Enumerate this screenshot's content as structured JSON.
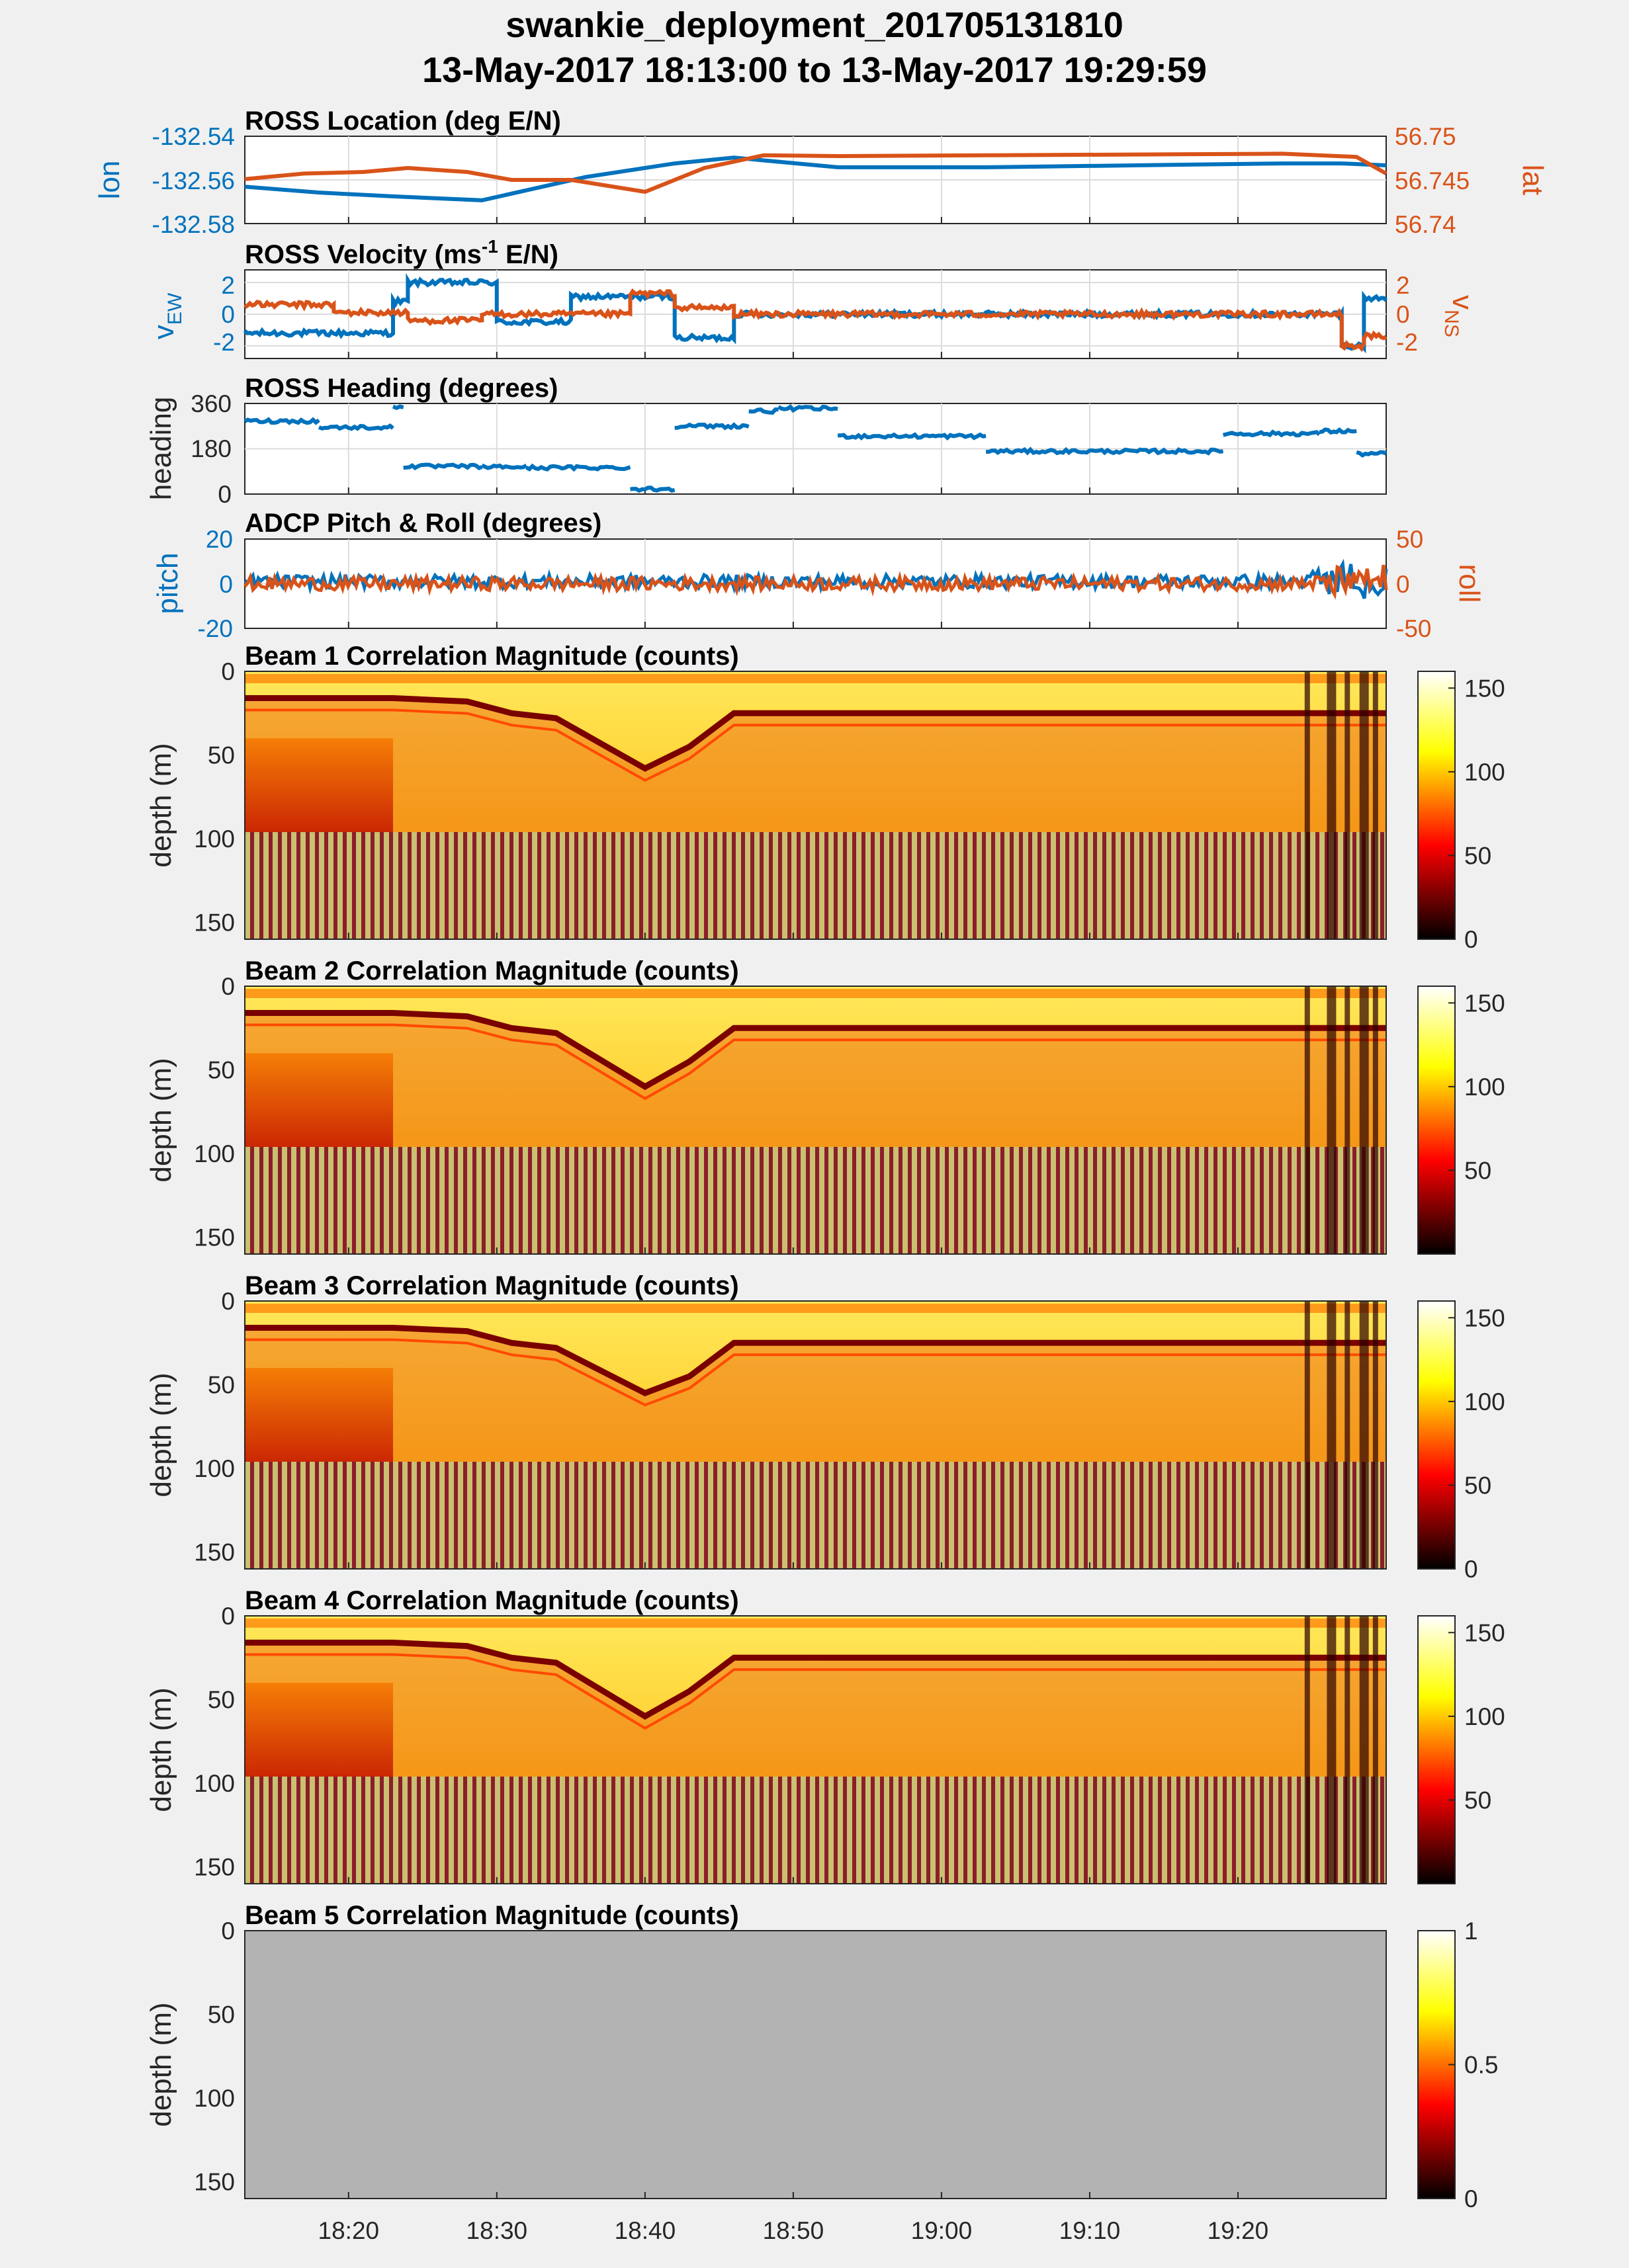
{
  "figure": {
    "title_line1": "swankie_deployment_201705131810",
    "title_line2": "13-May-2017 18:13:00 to 13-May-2017 19:29:59"
  },
  "colors": {
    "blue": "#0072bd",
    "orange": "#d95319",
    "axes_bg": "#ffffff",
    "figure_bg": "#f0f0f0",
    "grid": "#dcdcdc",
    "nodata_gray": "#b3b3b3",
    "colormap": "hot"
  },
  "x_axis": {
    "type": "time",
    "range": [
      "18:13:00",
      "19:29:59"
    ],
    "tick_labels": [
      "18:20",
      "18:30",
      "18:40",
      "18:50",
      "19:00",
      "19:10",
      "19:20"
    ],
    "tick_minutes": [
      7,
      17,
      27,
      37,
      47,
      57,
      67
    ],
    "span_minutes": 77
  },
  "chart_data": [
    {
      "type": "line",
      "title": "ROSS Location (deg E/N)",
      "ylabel_left": "lon",
      "ylabel_right": "lat",
      "ylim_left": [
        -132.58,
        -132.535
      ],
      "ylim_right": [
        56.74,
        56.751
      ],
      "yticks_left": [
        "-132.54",
        "-132.56",
        "-132.58"
      ],
      "yticks_right": [
        "56.75",
        "56.745",
        "56.74"
      ],
      "series": [
        {
          "name": "lon",
          "axis": "left",
          "color": "#0072bd",
          "t": [
            0,
            5,
            10,
            16,
            23,
            29,
            33,
            40,
            50,
            60,
            70,
            74,
            77
          ],
          "values": [
            -132.561,
            -132.564,
            -132.566,
            -132.568,
            -132.556,
            -132.549,
            -132.546,
            -132.551,
            -132.551,
            -132.55,
            -132.549,
            -132.549,
            -132.55
          ]
        },
        {
          "name": "lat",
          "axis": "right",
          "color": "#d95319",
          "t": [
            0,
            4,
            8,
            11,
            15,
            18,
            22,
            27,
            31,
            35,
            40,
            50,
            60,
            70,
            75,
            77
          ],
          "values": [
            56.7456,
            56.7463,
            56.7465,
            56.747,
            56.7465,
            56.7455,
            56.7455,
            56.744,
            56.747,
            56.7486,
            56.7485,
            56.7486,
            56.7487,
            56.7488,
            56.7484,
            56.7463
          ]
        }
      ]
    },
    {
      "type": "line",
      "title_main": "ROSS Velocity (ms",
      "title_sup": "-1",
      "title_tail": " E/N)",
      "ylabel_left": "v",
      "ylabel_left_sub": "EW",
      "ylabel_right": "v",
      "ylabel_right_sub": "NS",
      "ylim_left": [
        -2.8,
        2.8
      ],
      "ylim_right": [
        -2.8,
        2.8
      ],
      "yticks_left": [
        "2",
        "0",
        "-2"
      ],
      "yticks_right": [
        "2",
        "0",
        "-2"
      ],
      "series": [
        {
          "name": "vEW",
          "axis": "left",
          "color": "#0072bd",
          "segments": [
            [
              0,
              10,
              -1.2
            ],
            [
              10,
              11,
              0.8
            ],
            [
              11,
              17,
              2.0
            ],
            [
              17,
              22,
              -0.5
            ],
            [
              22,
              29,
              1.1
            ],
            [
              29,
              33,
              -1.5
            ],
            [
              33,
              74,
              0.0
            ],
            [
              74,
              75.5,
              -2.0
            ],
            [
              75.5,
              77,
              1.0
            ]
          ]
        },
        {
          "name": "vNS",
          "axis": "right",
          "color": "#d95319",
          "segments": [
            [
              0,
              6,
              0.6
            ],
            [
              6,
              11,
              0.1
            ],
            [
              11,
              16,
              -0.4
            ],
            [
              16,
              21,
              0.0
            ],
            [
              21,
              26,
              0.0
            ],
            [
              26,
              29,
              1.3
            ],
            [
              29,
              33,
              0.4
            ],
            [
              33,
              74,
              0.0
            ],
            [
              74,
              75.5,
              -2.0
            ],
            [
              75.5,
              77,
              -1.4
            ]
          ]
        }
      ]
    },
    {
      "type": "scatter",
      "title": "ROSS Heading (degrees)",
      "ylabel": "heading",
      "ylim": [
        0,
        360
      ],
      "yticks": [
        "360",
        "180",
        "0"
      ],
      "series": [
        {
          "name": "heading",
          "color": "#0072bd",
          "segments": [
            [
              0,
              5,
              290
            ],
            [
              5,
              10,
              265
            ],
            [
              10,
              10.7,
              345
            ],
            [
              10.7,
              16,
              110
            ],
            [
              16,
              19,
              108
            ],
            [
              19,
              26,
              105
            ],
            [
              26,
              29,
              20
            ],
            [
              29,
              34,
              270
            ],
            [
              34,
              36,
              330
            ],
            [
              36,
              40,
              340
            ],
            [
              40,
              50,
              230
            ],
            [
              50,
              66,
              170
            ],
            [
              66,
              72.5,
              240
            ],
            [
              72.5,
              75,
              250
            ],
            [
              75,
              77,
              160
            ]
          ]
        }
      ]
    },
    {
      "type": "scatter",
      "title": "ADCP Pitch & Roll (degrees)",
      "ylabel_left": "pitch",
      "ylabel_right": "roll",
      "ylim_left": [
        -20,
        20
      ],
      "ylim_right": [
        -50,
        50
      ],
      "yticks_left": [
        "20",
        "0",
        "-20"
      ],
      "yticks_right": [
        "50",
        "0",
        "-50"
      ],
      "series": [
        {
          "name": "pitch",
          "axis": "left",
          "color": "#0072bd",
          "mean": 1,
          "spread": 3
        },
        {
          "name": "roll",
          "axis": "right",
          "color": "#d95319",
          "mean": 0,
          "spread": 3
        }
      ]
    },
    {
      "type": "heatmap",
      "title": "Beam 1 Correlation Magnitude (counts)",
      "ylabel": "depth (m)",
      "ylim": [
        0,
        160
      ],
      "yticks": [
        "0",
        "50",
        "100",
        "150"
      ],
      "clim": [
        0,
        160
      ],
      "colorbar_ticks": [
        "150",
        "100",
        "50",
        "0"
      ],
      "colorbar_values": [
        150,
        100,
        50,
        0
      ],
      "bin_range_m": [
        0,
        96
      ],
      "seabed_depth_m_at_t": [
        [
          0,
          16
        ],
        [
          10,
          16
        ],
        [
          15,
          18
        ],
        [
          18,
          25
        ],
        [
          21,
          28
        ],
        [
          27,
          58
        ],
        [
          30,
          45
        ],
        [
          33,
          25
        ],
        [
          77,
          25
        ]
      ]
    },
    {
      "type": "heatmap",
      "title": "Beam 2 Correlation Magnitude (counts)",
      "ylabel": "depth (m)",
      "ylim": [
        0,
        160
      ],
      "yticks": [
        "0",
        "50",
        "100",
        "150"
      ],
      "clim": [
        0,
        160
      ],
      "colorbar_ticks": [
        "150",
        "100",
        "50"
      ],
      "colorbar_values": [
        150,
        100,
        50
      ],
      "bin_range_m": [
        0,
        96
      ],
      "seabed_depth_m_at_t": [
        [
          0,
          16
        ],
        [
          10,
          16
        ],
        [
          15,
          18
        ],
        [
          18,
          25
        ],
        [
          21,
          28
        ],
        [
          27,
          60
        ],
        [
          30,
          45
        ],
        [
          33,
          25
        ],
        [
          77,
          25
        ]
      ]
    },
    {
      "type": "heatmap",
      "title": "Beam 3 Correlation Magnitude (counts)",
      "ylabel": "depth (m)",
      "ylim": [
        0,
        160
      ],
      "yticks": [
        "0",
        "50",
        "100",
        "150"
      ],
      "clim": [
        0,
        160
      ],
      "colorbar_ticks": [
        "150",
        "100",
        "50",
        "0"
      ],
      "colorbar_values": [
        150,
        100,
        50,
        0
      ],
      "bin_range_m": [
        0,
        96
      ],
      "seabed_depth_m_at_t": [
        [
          0,
          16
        ],
        [
          10,
          16
        ],
        [
          15,
          18
        ],
        [
          18,
          25
        ],
        [
          21,
          28
        ],
        [
          27,
          55
        ],
        [
          30,
          45
        ],
        [
          33,
          25
        ],
        [
          77,
          25
        ]
      ]
    },
    {
      "type": "heatmap",
      "title": "Beam 4 Correlation Magnitude (counts)",
      "ylabel": "depth (m)",
      "ylim": [
        0,
        160
      ],
      "yticks": [
        "0",
        "50",
        "100",
        "150"
      ],
      "clim": [
        0,
        160
      ],
      "colorbar_ticks": [
        "150",
        "100",
        "50"
      ],
      "colorbar_values": [
        150,
        100,
        50
      ],
      "bin_range_m": [
        0,
        96
      ],
      "seabed_depth_m_at_t": [
        [
          0,
          16
        ],
        [
          10,
          16
        ],
        [
          15,
          18
        ],
        [
          18,
          25
        ],
        [
          21,
          28
        ],
        [
          27,
          60
        ],
        [
          30,
          45
        ],
        [
          33,
          25
        ],
        [
          77,
          25
        ]
      ]
    },
    {
      "type": "heatmap",
      "title": "Beam 5 Correlation Magnitude (counts)",
      "ylabel": "depth (m)",
      "ylim": [
        0,
        160
      ],
      "yticks": [
        "0",
        "50",
        "100",
        "150"
      ],
      "clim": [
        0,
        1
      ],
      "colorbar_ticks": [
        "1",
        "0.5",
        "0"
      ],
      "colorbar_values": [
        1,
        0.5,
        0
      ],
      "no_data": true
    }
  ]
}
